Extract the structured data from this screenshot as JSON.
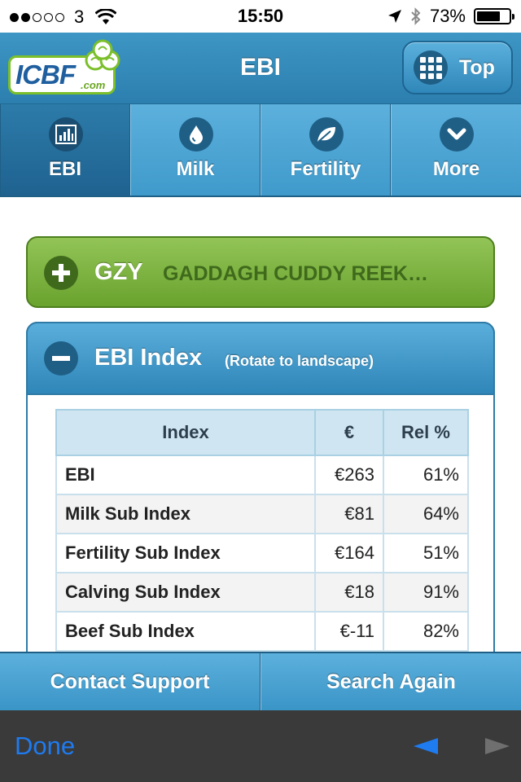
{
  "status_bar": {
    "signal_dots_filled": 2,
    "signal_dots_total": 5,
    "carrier": "3",
    "time": "15:50",
    "battery": "73%",
    "battery_level": 0.73
  },
  "header": {
    "logo_text": "ICBF",
    "logo_suffix": ".com",
    "title": "EBI",
    "top_button_label": "Top",
    "top_button_icon": "grid-icon"
  },
  "tabs": [
    {
      "label": "EBI",
      "icon": "bar-chart-icon",
      "active": true
    },
    {
      "label": "Milk",
      "icon": "drop-icon",
      "active": false
    },
    {
      "label": "Fertility",
      "icon": "leaf-icon",
      "active": false
    },
    {
      "label": "More",
      "icon": "chevron-down-icon",
      "active": false
    }
  ],
  "animal": {
    "code": "GZY",
    "name": "GADDAGH CUDDY REEK…"
  },
  "ebi_section": {
    "title": "EBI Index",
    "subtitle": "(Rotate to landscape)",
    "columns": [
      "Index",
      "€",
      "Rel %"
    ],
    "rows": [
      {
        "index": "EBI",
        "euro": "€263",
        "rel": "61%"
      },
      {
        "index": "Milk Sub Index",
        "euro": "€81",
        "rel": "64%"
      },
      {
        "index": "Fertility Sub Index",
        "euro": "€164",
        "rel": "51%"
      },
      {
        "index": "Calving Sub Index",
        "euro": "€18",
        "rel": "91%"
      },
      {
        "index": "Beef Sub Index",
        "euro": "€-11",
        "rel": "82%"
      }
    ]
  },
  "footer": {
    "contact_label": "Contact Support",
    "search_label": "Search Again"
  },
  "toolbar": {
    "done_label": "Done"
  },
  "colors": {
    "header_blue": "#2c7faf",
    "green_bar": "#7ab33f",
    "ios_blue": "#1e7bf0",
    "toolbar_bg": "#3a3a3a"
  }
}
